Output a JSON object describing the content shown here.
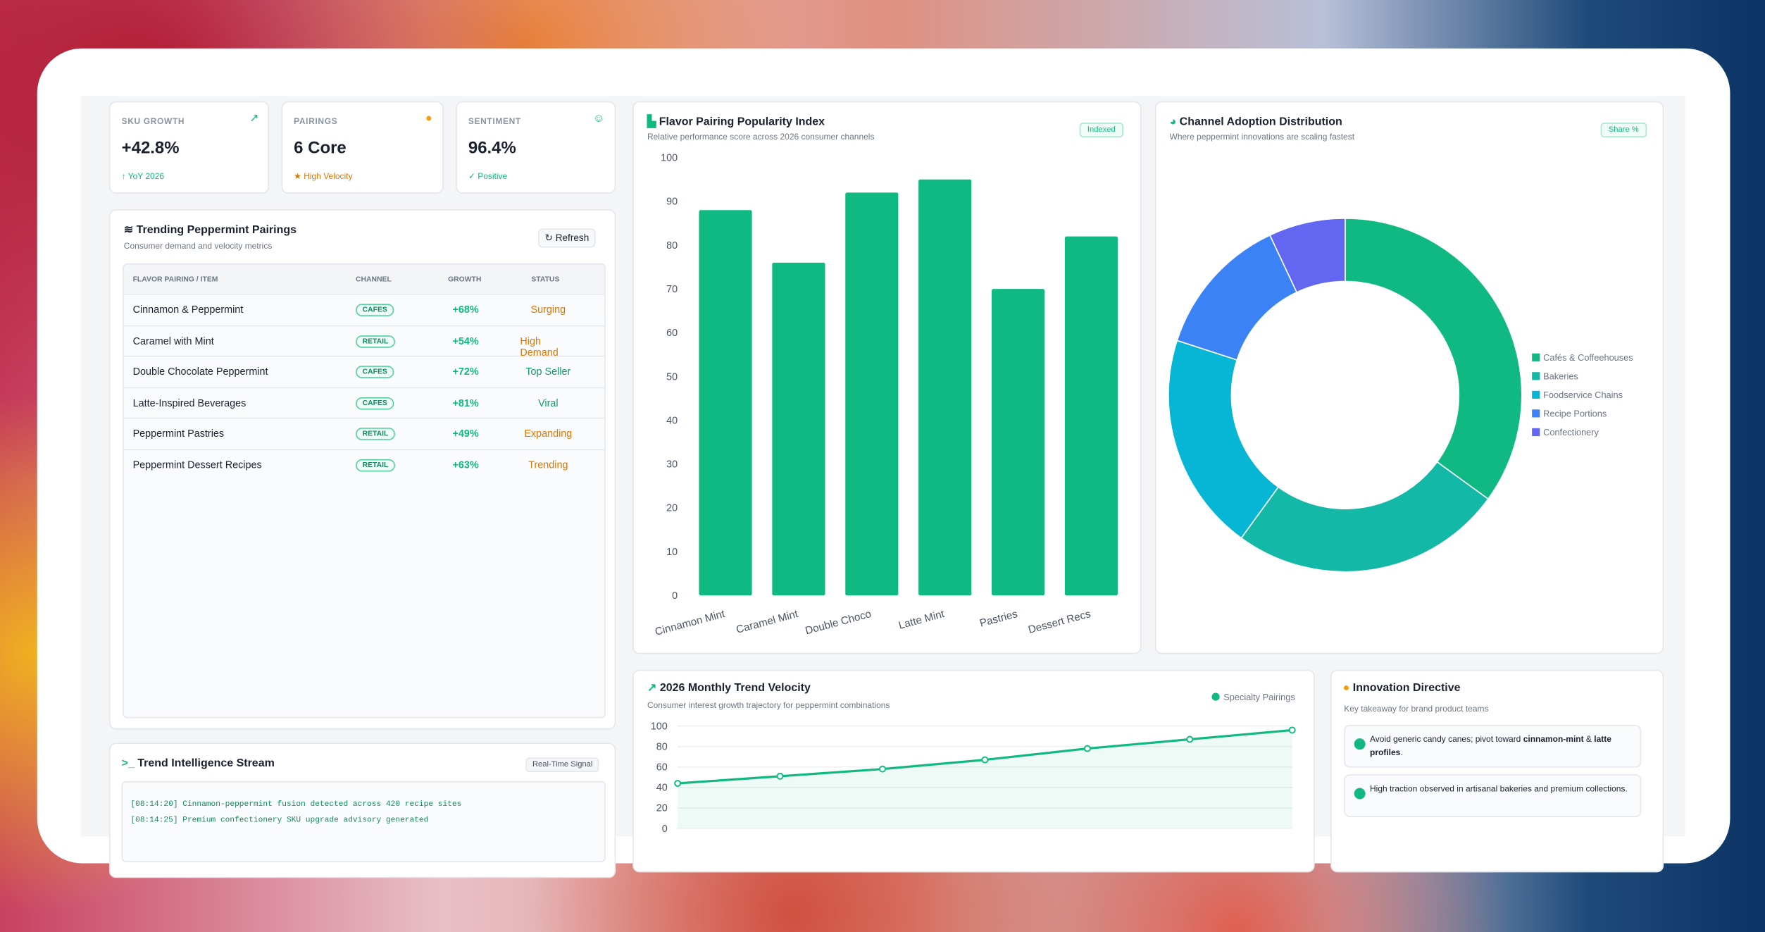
{
  "kpis": [
    {
      "label": "SKU GROWTH",
      "value": "+42.8%",
      "note": "YoY 2026"
    },
    {
      "label": "PAIRINGS",
      "value": "6 Core",
      "note": "High Velocity"
    },
    {
      "label": "SENTIMENT",
      "value": "96.4%",
      "note": "Positive"
    }
  ],
  "table": {
    "title": "Trending Peppermint Pairings",
    "subtitle": "Consumer demand and velocity metrics",
    "button": "Refresh",
    "headers": [
      "FLAVOR PAIRING / ITEM",
      "CHANNEL",
      "GROWTH",
      "STATUS"
    ],
    "rows": [
      [
        "Cinnamon & Peppermint",
        "CAFES",
        "+68%",
        "Surging"
      ],
      [
        "Caramel with Mint",
        "RETAIL",
        "+54%",
        "High Demand"
      ],
      [
        "Double Chocolate Peppermint",
        "CAFES",
        "+72%",
        "Top Seller"
      ],
      [
        "Latte-Inspired Beverages",
        "CAFES",
        "+81%",
        "Viral"
      ],
      [
        "Peppermint Pastries",
        "RETAIL",
        "+49%",
        "Expanding"
      ],
      [
        "Peppermint Dessert Recipes",
        "RETAIL",
        "+63%",
        "Trending"
      ]
    ]
  },
  "stream": {
    "title": "Trend Intelligence Stream",
    "badge": "Real-Time Signal",
    "lines": [
      "[08:14:20] Cinnamon-peppermint fusion detected across 420 recipe sites",
      "[08:14:25] Premium confectionery SKU upgrade advisory generated"
    ]
  },
  "directive": {
    "title": "Innovation Directive",
    "subtitle": "Key takeaway for brand product teams",
    "items": [
      [
        "Avoid generic candy canes; pivot toward ",
        "cinnamon-mint",
        " & ",
        "latte profiles",
        "."
      ],
      [
        "High traction observed in artisanal bakeries and premium collections."
      ]
    ]
  },
  "chart_data": [
    {
      "type": "bar",
      "title": "Flavor Pairing Popularity Index",
      "subtitle": "Relative performance score across 2026 consumer channels",
      "badge": "Indexed",
      "categories": [
        "Cinnamon Mint",
        "Caramel Mint",
        "Double Choco",
        "Latte Mint",
        "Pastries",
        "Dessert Recs"
      ],
      "values": [
        88,
        76,
        92,
        95,
        70,
        82
      ],
      "color": "#10b981",
      "ylim": [
        0,
        100
      ],
      "yticks": [
        0,
        10,
        20,
        30,
        40,
        50,
        60,
        70,
        80,
        90,
        100
      ],
      "grid": false
    },
    {
      "type": "pie",
      "title": "Channel Adoption Distribution",
      "subtitle": "Where peppermint innovations are scaling fastest",
      "badge": "Share %",
      "categories": [
        "Cafés & Coffeehouses",
        "Bakeries",
        "Foodservice Chains",
        "Recipe Portions",
        "Confectionery"
      ],
      "values": [
        35,
        25,
        20,
        13,
        7
      ],
      "colors": [
        "#10b981",
        "#14b8a6",
        "#06b6d4",
        "#3b82f6",
        "#6366f1"
      ],
      "legend": "right"
    },
    {
      "type": "line",
      "title": "2026 Monthly Trend Velocity",
      "subtitle": "Consumer interest growth trajectory for peppermint combinations",
      "series": [
        {
          "name": "Specialty Pairings",
          "color": "#10b981",
          "values": [
            44,
            51,
            58,
            67,
            78,
            87,
            96
          ]
        }
      ],
      "ylim": [
        0,
        100
      ],
      "yticks": [
        0,
        20,
        40,
        60,
        80,
        100
      ],
      "grid": true,
      "legend": "top-right"
    }
  ]
}
